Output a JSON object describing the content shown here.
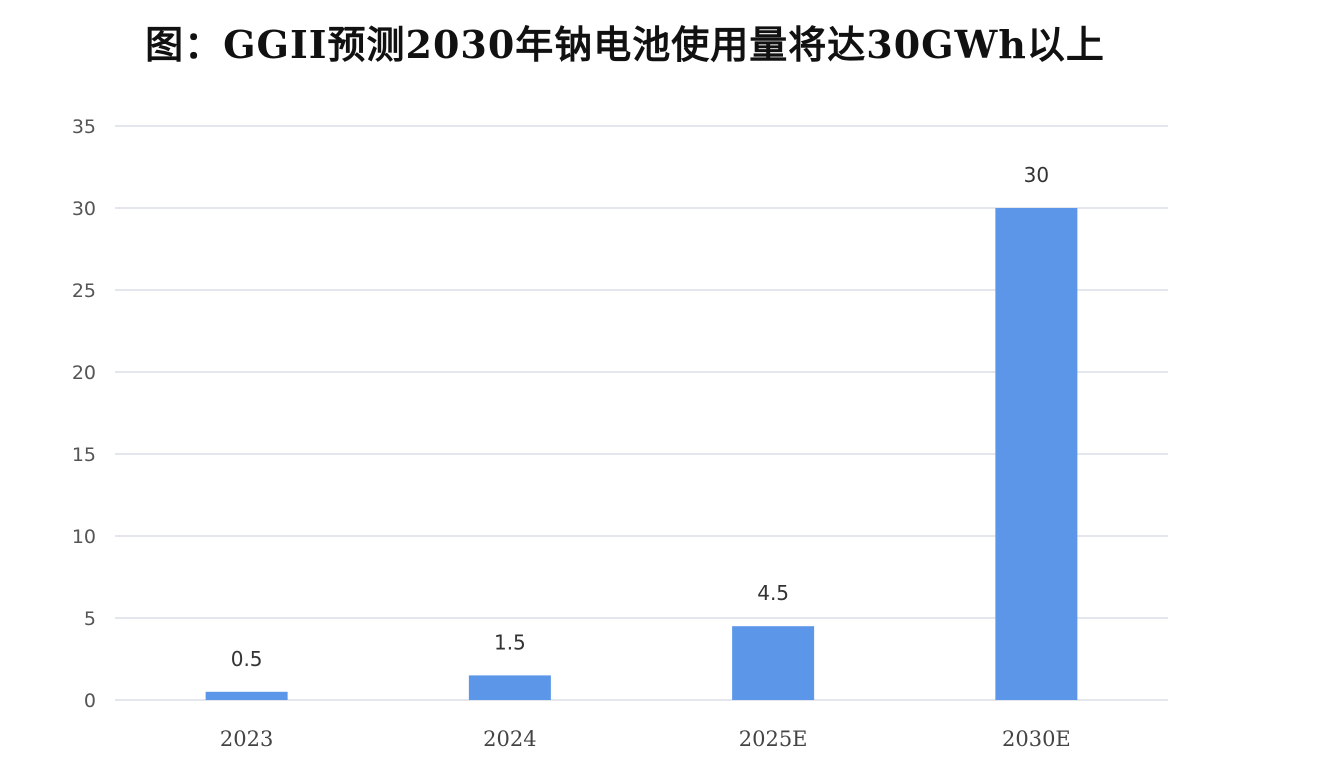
{
  "chart_data": {
    "type": "bar",
    "title": "图：GGII预测2030年钠电池使用量将达30GWh以上",
    "categories": [
      "2023",
      "2024",
      "2025E",
      "2030E"
    ],
    "values": [
      0.5,
      1.5,
      4.5,
      30
    ],
    "data_labels": [
      "0.5",
      "1.5",
      "4.5",
      "30"
    ],
    "ylim": [
      0,
      35
    ],
    "yticks": [
      0,
      5,
      10,
      15,
      20,
      25,
      30,
      35
    ],
    "grid": true,
    "legend": "none",
    "bar_color": "#5b96e8",
    "grid_color": "#d3d8e4"
  }
}
